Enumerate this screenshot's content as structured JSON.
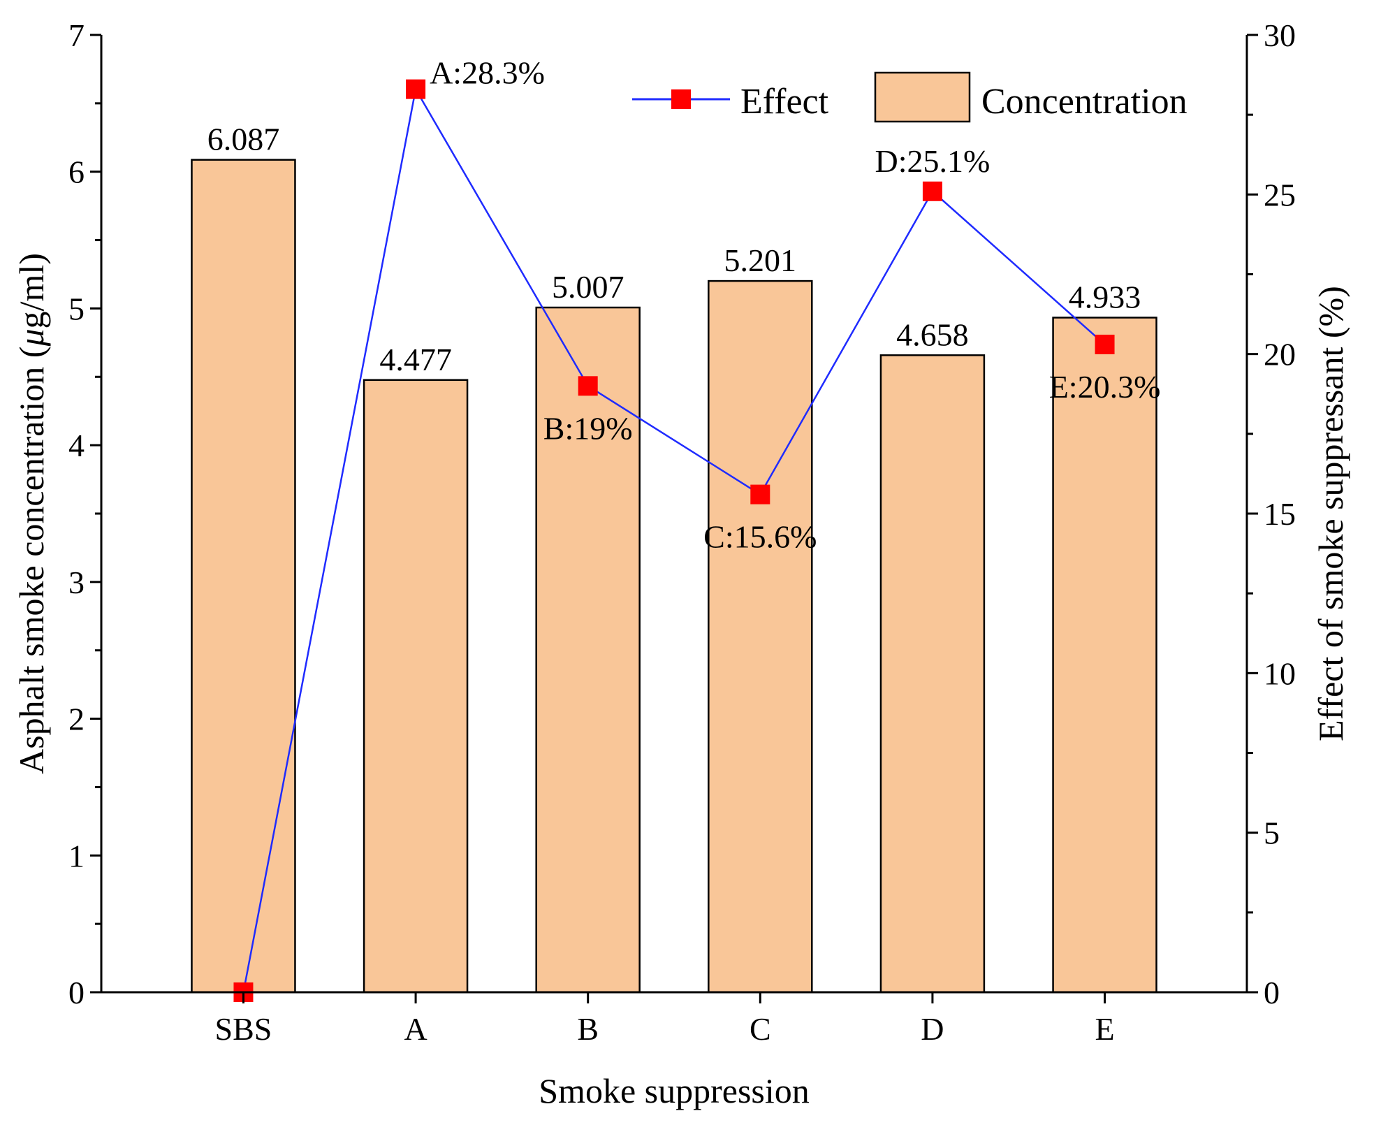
{
  "chart_data": {
    "type": "bar+line",
    "title": "",
    "categories": [
      "SBS",
      "A",
      "B",
      "C",
      "D",
      "E"
    ],
    "xlabel": "Smoke suppression",
    "series": [
      {
        "name": "Concentration",
        "type": "bar",
        "axis": "left",
        "values": [
          6.087,
          4.477,
          5.007,
          5.201,
          4.658,
          4.933
        ],
        "value_labels": [
          "6.087",
          "4.477",
          "5.007",
          "5.201",
          "4.658",
          "4.933"
        ],
        "color": "#f9c698",
        "edge_color": "#000000"
      },
      {
        "name": "Effect",
        "type": "line",
        "axis": "right",
        "values": [
          0,
          28.3,
          19.0,
          15.6,
          25.1,
          20.3
        ],
        "point_labels": [
          "",
          "A:28.3%",
          "B:19%",
          "C:15.6%",
          "D:25.1%",
          "E:20.3%"
        ],
        "line_color": "#1f2bff",
        "marker_color": "#ff0000",
        "marker": "square"
      }
    ],
    "left_axis": {
      "label_pre": "Asphalt smoke concentration (",
      "label_mu": "μ",
      "label_post": "g/ml)",
      "ylim": [
        0,
        7
      ],
      "ticks": [
        0,
        1,
        2,
        3,
        4,
        5,
        6,
        7
      ],
      "tick_labels": [
        "0",
        "1",
        "2",
        "3",
        "4",
        "5",
        "6",
        "7"
      ]
    },
    "right_axis": {
      "label": "Effect of smoke suppressant (%)",
      "ylim": [
        0,
        30
      ],
      "ticks": [
        0,
        5,
        10,
        15,
        20,
        25,
        30
      ],
      "tick_labels": [
        "0",
        "5",
        "10",
        "15",
        "20",
        "25",
        "30"
      ]
    },
    "legend": {
      "position": "top-right",
      "entries": [
        "Effect",
        "Concentration"
      ]
    },
    "grid": false
  }
}
